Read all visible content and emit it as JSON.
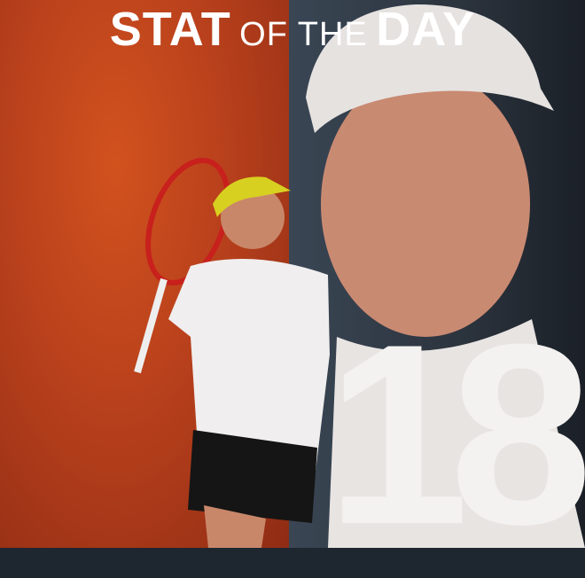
{
  "title": {
    "stat": "STAT",
    "of_the": "OF THE",
    "day": "DAY"
  },
  "stat_number": "18",
  "colors": {
    "left_bg": "#b8401c",
    "right_bg": "#2b333d",
    "text": "#ffffff"
  }
}
